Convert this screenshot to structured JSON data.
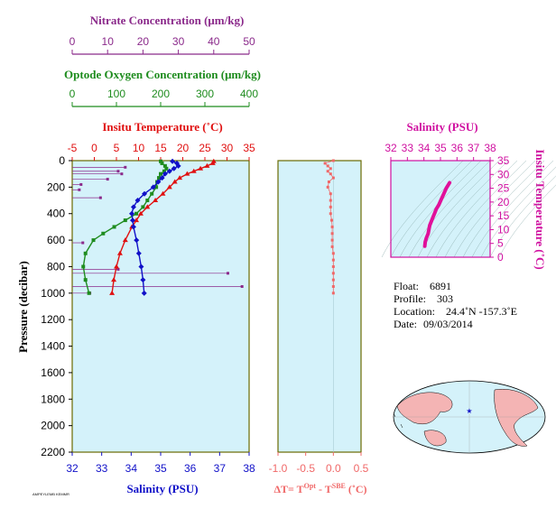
{
  "figure": {
    "nitrate_title": "Nitrate Concentration (μm/kg)",
    "oxygen_title": "Optode Oxygen Concentration (μm/kg)",
    "temp_title": "Insitu Temperature (˚C)",
    "salinity_bottom_title": "Salinity (PSU)",
    "pressure_label": "Pressure (decibar)",
    "delta_label": "ΔT= T",
    "delta_sup1": "Opt",
    "delta_minus": " - T",
    "delta_sup2": "SBE",
    "delta_unit": " (˚C)",
    "ts_title": "Salinity (PSU)",
    "ts_ylabel": "Insitu Temperature (˚C)",
    "footer_tiny": "AMPEYLEMB KEMMR"
  },
  "info": {
    "float_label": "Float:",
    "float_value": "6891",
    "profile_label": "Profile:",
    "profile_value": "303",
    "location_label": "Location:",
    "location_value": "24.4˚N  -157.3˚E",
    "date_label": "Date:",
    "date_value": "09/03/2014"
  },
  "colors": {
    "nitrate": "#8b2a8b",
    "oxygen": "#1e8c1e",
    "temperature": "#e01010",
    "salinity": "#1010c8",
    "ts": "#e0109a",
    "delta": "#f06868",
    "plotbg": "#d4f2fa",
    "frame": "#6b6b00",
    "map_land": "#f4b4b4",
    "map_ocean": "#d4f2fa"
  },
  "chart_data": [
    {
      "type": "scatter",
      "name": "profile",
      "ylabel": "Pressure (decibar)",
      "ylim": [
        2200,
        0
      ],
      "yticks": [
        0,
        200,
        400,
        600,
        800,
        1000,
        1200,
        1400,
        1600,
        1800,
        2000,
        2200
      ],
      "axes": {
        "nitrate": {
          "label": "Nitrate Concentration (μm/kg)",
          "lim": [
            0,
            50
          ],
          "ticks": [
            0,
            10,
            20,
            30,
            40,
            50
          ]
        },
        "oxygen": {
          "label": "Optode Oxygen Concentration (μm/kg)",
          "lim": [
            0,
            400
          ],
          "ticks": [
            0,
            100,
            200,
            300,
            400
          ]
        },
        "temperature": {
          "label": "Insitu Temperature (˚C)",
          "lim": [
            -5,
            35
          ],
          "ticks": [
            -5,
            0,
            5,
            10,
            15,
            20,
            25,
            30,
            35
          ]
        },
        "salinity": {
          "label": "Salinity (PSU)",
          "lim": [
            32,
            38
          ],
          "ticks": [
            32,
            33,
            34,
            35,
            36,
            37,
            38
          ]
        }
      },
      "temperature": {
        "pressure": [
          5,
          20,
          40,
          60,
          80,
          100,
          130,
          160,
          200,
          250,
          300,
          350,
          400,
          450,
          500,
          600,
          700,
          800,
          900,
          1000
        ],
        "values": [
          27.0,
          26.8,
          25.5,
          24.0,
          22.5,
          21.0,
          19.3,
          18.2,
          17.0,
          15.5,
          13.8,
          12.0,
          10.5,
          9.5,
          8.5,
          7.0,
          5.8,
          5.0,
          4.4,
          4.0
        ]
      },
      "salinity": {
        "pressure": [
          5,
          20,
          40,
          60,
          80,
          100,
          130,
          160,
          200,
          250,
          300,
          350,
          400,
          450,
          500,
          600,
          700,
          800,
          900,
          1000
        ],
        "values": [
          35.4,
          35.55,
          35.6,
          35.45,
          35.3,
          35.15,
          35.05,
          34.92,
          34.75,
          34.45,
          34.22,
          34.08,
          34.02,
          34.05,
          34.08,
          34.18,
          34.26,
          34.34,
          34.4,
          34.44
        ]
      },
      "oxygen": {
        "pressure": [
          5,
          20,
          40,
          60,
          80,
          100,
          130,
          160,
          200,
          250,
          300,
          350,
          400,
          450,
          500,
          550,
          600,
          700,
          800,
          900,
          1000
        ],
        "values": [
          200,
          203,
          210,
          213,
          208,
          200,
          196,
          192,
          190,
          180,
          170,
          160,
          145,
          120,
          95,
          70,
          48,
          30,
          25,
          30,
          38
        ]
      },
      "nitrate": {
        "pressure": [
          50,
          80,
          100,
          140,
          180,
          220,
          280,
          620,
          820,
          850,
          950,
          1000
        ],
        "values": [
          15,
          13,
          14,
          10,
          2.5,
          2,
          8,
          3,
          13,
          44,
          48,
          5
        ],
        "spike_from": [
          [
            80,
            0
          ],
          [
            100,
            0
          ],
          [
            140,
            0
          ],
          [
            220,
            0
          ],
          [
            280,
            0
          ],
          [
            820,
            0
          ],
          [
            850,
            0
          ],
          [
            950,
            0
          ],
          [
            1000,
            0
          ]
        ]
      }
    },
    {
      "type": "scatter",
      "name": "delta-temperature",
      "xlabel": "ΔT= T^Opt - T^SBE (˚C)",
      "xlim": [
        -1.0,
        0.5
      ],
      "xticks": [
        -1.0,
        -0.5,
        0.0,
        0.5
      ],
      "ylim": [
        2200,
        0
      ],
      "pressure": [
        0,
        20,
        40,
        60,
        80,
        100,
        130,
        160,
        200,
        250,
        300,
        350,
        400,
        450,
        500,
        550,
        600,
        650,
        700,
        750,
        800,
        850,
        900,
        950,
        1000
      ],
      "values": [
        0.0,
        -0.15,
        -0.1,
        -0.05,
        -0.1,
        -0.05,
        0.0,
        -0.08,
        -0.1,
        -0.05,
        -0.05,
        -0.05,
        -0.05,
        -0.03,
        -0.02,
        -0.02,
        -0.02,
        -0.02,
        0.0,
        0.0,
        0.0,
        0.0,
        0.0,
        0.0,
        0.0
      ]
    },
    {
      "type": "line",
      "name": "ts-diagram",
      "title": "Salinity (PSU)",
      "ylabel": "Insitu Temperature (˚C)",
      "xlim": [
        32,
        38
      ],
      "xticks": [
        32,
        33,
        34,
        35,
        36,
        37,
        38
      ],
      "ylim": [
        0,
        35
      ],
      "yticks": [
        0,
        5,
        10,
        15,
        20,
        25,
        30,
        35
      ],
      "salinity": [
        34.05,
        34.08,
        34.15,
        34.25,
        34.3,
        34.35,
        34.45,
        34.55,
        34.65,
        34.75,
        34.9,
        35.05,
        35.2,
        35.35,
        35.5,
        35.55
      ],
      "temperature": [
        4.0,
        5.5,
        7.0,
        8.5,
        10.0,
        11.5,
        13.0,
        14.5,
        16.0,
        17.5,
        19.0,
        21.0,
        23.0,
        25.0,
        26.5,
        27.0
      ]
    }
  ]
}
